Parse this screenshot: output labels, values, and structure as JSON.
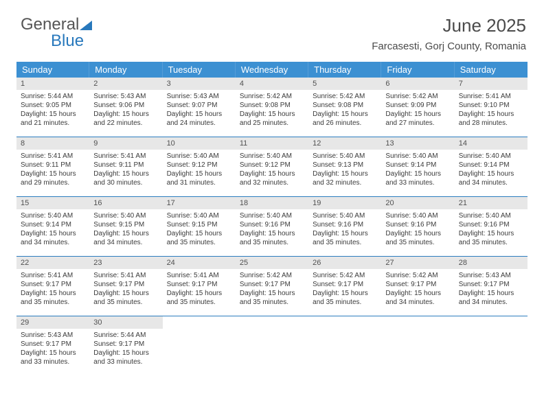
{
  "brand": {
    "word1": "General",
    "word2": "Blue"
  },
  "title": "June 2025",
  "location": "Farcasesti, Gorj County, Romania",
  "colors": {
    "header_bg": "#3c90d2",
    "header_text": "#ffffff",
    "daynum_bg": "#e7e7e7",
    "border": "#2a7cbf",
    "brand_gray": "#6a6a6a",
    "brand_blue": "#2878bc"
  },
  "day_headers": [
    "Sunday",
    "Monday",
    "Tuesday",
    "Wednesday",
    "Thursday",
    "Friday",
    "Saturday"
  ],
  "weeks": [
    [
      {
        "n": "1",
        "sr": "Sunrise: 5:44 AM",
        "ss": "Sunset: 9:05 PM",
        "d1": "Daylight: 15 hours",
        "d2": "and 21 minutes."
      },
      {
        "n": "2",
        "sr": "Sunrise: 5:43 AM",
        "ss": "Sunset: 9:06 PM",
        "d1": "Daylight: 15 hours",
        "d2": "and 22 minutes."
      },
      {
        "n": "3",
        "sr": "Sunrise: 5:43 AM",
        "ss": "Sunset: 9:07 PM",
        "d1": "Daylight: 15 hours",
        "d2": "and 24 minutes."
      },
      {
        "n": "4",
        "sr": "Sunrise: 5:42 AM",
        "ss": "Sunset: 9:08 PM",
        "d1": "Daylight: 15 hours",
        "d2": "and 25 minutes."
      },
      {
        "n": "5",
        "sr": "Sunrise: 5:42 AM",
        "ss": "Sunset: 9:08 PM",
        "d1": "Daylight: 15 hours",
        "d2": "and 26 minutes."
      },
      {
        "n": "6",
        "sr": "Sunrise: 5:42 AM",
        "ss": "Sunset: 9:09 PM",
        "d1": "Daylight: 15 hours",
        "d2": "and 27 minutes."
      },
      {
        "n": "7",
        "sr": "Sunrise: 5:41 AM",
        "ss": "Sunset: 9:10 PM",
        "d1": "Daylight: 15 hours",
        "d2": "and 28 minutes."
      }
    ],
    [
      {
        "n": "8",
        "sr": "Sunrise: 5:41 AM",
        "ss": "Sunset: 9:11 PM",
        "d1": "Daylight: 15 hours",
        "d2": "and 29 minutes."
      },
      {
        "n": "9",
        "sr": "Sunrise: 5:41 AM",
        "ss": "Sunset: 9:11 PM",
        "d1": "Daylight: 15 hours",
        "d2": "and 30 minutes."
      },
      {
        "n": "10",
        "sr": "Sunrise: 5:40 AM",
        "ss": "Sunset: 9:12 PM",
        "d1": "Daylight: 15 hours",
        "d2": "and 31 minutes."
      },
      {
        "n": "11",
        "sr": "Sunrise: 5:40 AM",
        "ss": "Sunset: 9:12 PM",
        "d1": "Daylight: 15 hours",
        "d2": "and 32 minutes."
      },
      {
        "n": "12",
        "sr": "Sunrise: 5:40 AM",
        "ss": "Sunset: 9:13 PM",
        "d1": "Daylight: 15 hours",
        "d2": "and 32 minutes."
      },
      {
        "n": "13",
        "sr": "Sunrise: 5:40 AM",
        "ss": "Sunset: 9:14 PM",
        "d1": "Daylight: 15 hours",
        "d2": "and 33 minutes."
      },
      {
        "n": "14",
        "sr": "Sunrise: 5:40 AM",
        "ss": "Sunset: 9:14 PM",
        "d1": "Daylight: 15 hours",
        "d2": "and 34 minutes."
      }
    ],
    [
      {
        "n": "15",
        "sr": "Sunrise: 5:40 AM",
        "ss": "Sunset: 9:14 PM",
        "d1": "Daylight: 15 hours",
        "d2": "and 34 minutes."
      },
      {
        "n": "16",
        "sr": "Sunrise: 5:40 AM",
        "ss": "Sunset: 9:15 PM",
        "d1": "Daylight: 15 hours",
        "d2": "and 34 minutes."
      },
      {
        "n": "17",
        "sr": "Sunrise: 5:40 AM",
        "ss": "Sunset: 9:15 PM",
        "d1": "Daylight: 15 hours",
        "d2": "and 35 minutes."
      },
      {
        "n": "18",
        "sr": "Sunrise: 5:40 AM",
        "ss": "Sunset: 9:16 PM",
        "d1": "Daylight: 15 hours",
        "d2": "and 35 minutes."
      },
      {
        "n": "19",
        "sr": "Sunrise: 5:40 AM",
        "ss": "Sunset: 9:16 PM",
        "d1": "Daylight: 15 hours",
        "d2": "and 35 minutes."
      },
      {
        "n": "20",
        "sr": "Sunrise: 5:40 AM",
        "ss": "Sunset: 9:16 PM",
        "d1": "Daylight: 15 hours",
        "d2": "and 35 minutes."
      },
      {
        "n": "21",
        "sr": "Sunrise: 5:40 AM",
        "ss": "Sunset: 9:16 PM",
        "d1": "Daylight: 15 hours",
        "d2": "and 35 minutes."
      }
    ],
    [
      {
        "n": "22",
        "sr": "Sunrise: 5:41 AM",
        "ss": "Sunset: 9:17 PM",
        "d1": "Daylight: 15 hours",
        "d2": "and 35 minutes."
      },
      {
        "n": "23",
        "sr": "Sunrise: 5:41 AM",
        "ss": "Sunset: 9:17 PM",
        "d1": "Daylight: 15 hours",
        "d2": "and 35 minutes."
      },
      {
        "n": "24",
        "sr": "Sunrise: 5:41 AM",
        "ss": "Sunset: 9:17 PM",
        "d1": "Daylight: 15 hours",
        "d2": "and 35 minutes."
      },
      {
        "n": "25",
        "sr": "Sunrise: 5:42 AM",
        "ss": "Sunset: 9:17 PM",
        "d1": "Daylight: 15 hours",
        "d2": "and 35 minutes."
      },
      {
        "n": "26",
        "sr": "Sunrise: 5:42 AM",
        "ss": "Sunset: 9:17 PM",
        "d1": "Daylight: 15 hours",
        "d2": "and 35 minutes."
      },
      {
        "n": "27",
        "sr": "Sunrise: 5:42 AM",
        "ss": "Sunset: 9:17 PM",
        "d1": "Daylight: 15 hours",
        "d2": "and 34 minutes."
      },
      {
        "n": "28",
        "sr": "Sunrise: 5:43 AM",
        "ss": "Sunset: 9:17 PM",
        "d1": "Daylight: 15 hours",
        "d2": "and 34 minutes."
      }
    ],
    [
      {
        "n": "29",
        "sr": "Sunrise: 5:43 AM",
        "ss": "Sunset: 9:17 PM",
        "d1": "Daylight: 15 hours",
        "d2": "and 33 minutes."
      },
      {
        "n": "30",
        "sr": "Sunrise: 5:44 AM",
        "ss": "Sunset: 9:17 PM",
        "d1": "Daylight: 15 hours",
        "d2": "and 33 minutes."
      },
      {
        "empty": true
      },
      {
        "empty": true
      },
      {
        "empty": true
      },
      {
        "empty": true
      },
      {
        "empty": true
      }
    ]
  ]
}
